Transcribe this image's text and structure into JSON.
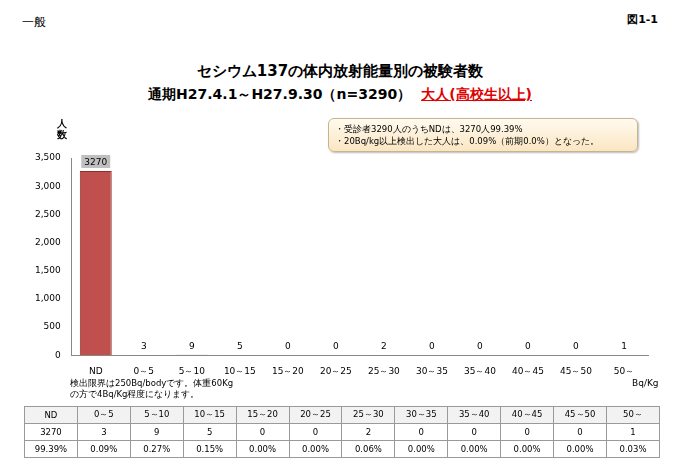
{
  "header": {
    "left": "一般",
    "right": "図1-1"
  },
  "chart_data": {
    "type": "bar",
    "title": "セシウム137の体内放射能量別の被験者数",
    "subtitle": "通期H27.4.1～H27.9.30（n=3290）",
    "subtitle_highlight": "大人(高校生以上)",
    "y_label": "人数",
    "x_label": "Bq/Kg",
    "annotations": [
      "・受診者3290人のうちNDは、3270人99.39%",
      "・20Bq/kg以上検出した大人は、0.09%（前期0.0%）となった。"
    ],
    "note": [
      "検出限界は250Bq/bodyです。体重60Kg",
      "の方で4Bq/Kg程度になります。"
    ],
    "categories": [
      "ND",
      "0～5",
      "5～10",
      "10～15",
      "15～20",
      "20～25",
      "25～30",
      "30～35",
      "35～40",
      "40～45",
      "45～50",
      "50～"
    ],
    "values": [
      3270,
      3,
      9,
      5,
      0,
      0,
      2,
      0,
      0,
      0,
      0,
      1
    ],
    "color": "#c0504d",
    "ylim": [
      0,
      3500
    ],
    "yticks": [
      0,
      500,
      1000,
      1500,
      2000,
      2500,
      3000,
      3500
    ],
    "grid": false,
    "data_labels": true
  },
  "table": {
    "rows": [
      [
        "ND",
        "0～5",
        "5～10",
        "10～15",
        "15～20",
        "20～25",
        "25～30",
        "30～35",
        "35～40",
        "40～45",
        "45～50",
        "50～"
      ],
      [
        "3270",
        "3",
        "9",
        "5",
        "0",
        "0",
        "2",
        "0",
        "0",
        "0",
        "0",
        "1"
      ],
      [
        "99.39%",
        "0.09%",
        "0.27%",
        "0.15%",
        "0.00%",
        "0.00%",
        "0.06%",
        "0.00%",
        "0.00%",
        "0.00%",
        "0.00%",
        "0.03%"
      ]
    ]
  }
}
